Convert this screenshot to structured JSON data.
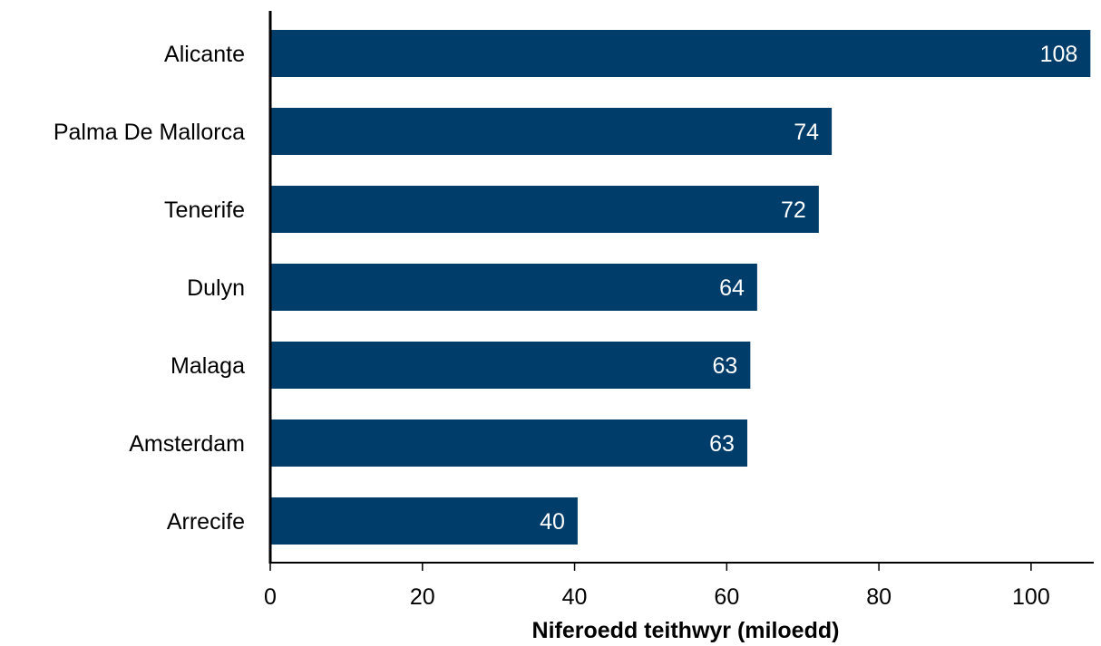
{
  "chart_data": {
    "type": "bar",
    "orientation": "horizontal",
    "categories": [
      "Alicante",
      "Palma De Mallorca",
      "Tenerife",
      "Dulyn",
      "Malaga",
      "Amsterdam",
      "Arrecife"
    ],
    "values": [
      107.8,
      73.8,
      72.1,
      64.0,
      63.1,
      62.7,
      40.4
    ],
    "value_labels": [
      "108",
      "74",
      "72",
      "64",
      "63",
      "63",
      "40"
    ],
    "title": "",
    "xlabel": "Niferoedd teithwyr (miloedd)",
    "ylabel": "",
    "xlim": [
      0,
      108
    ],
    "xticks": [
      0,
      20,
      40,
      60,
      80,
      100
    ],
    "xtick_labels": [
      "0",
      "20",
      "40",
      "60",
      "80",
      "100"
    ],
    "grid": false,
    "legend": "none",
    "colors": {
      "bar": "#003d6b",
      "axis": "#000000",
      "value_text": "#ffffff"
    }
  }
}
